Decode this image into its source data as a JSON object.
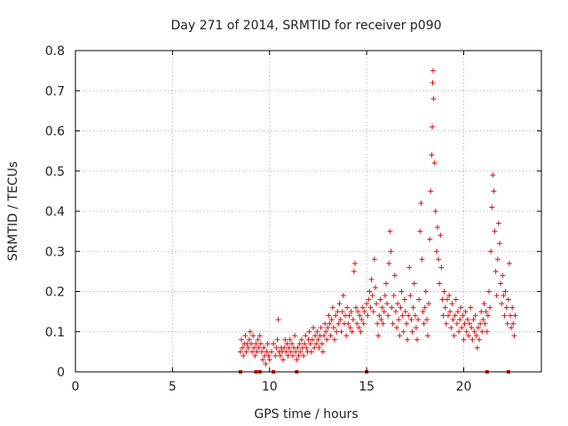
{
  "chart_data": {
    "type": "scatter",
    "title": "Day 271 of 2014, SRMTID for receiver p090",
    "xlabel": "GPS time / hours",
    "ylabel": "SRMTID / TECUs",
    "xlim": [
      0,
      24
    ],
    "ylim": [
      0,
      0.8
    ],
    "xticks": [
      0,
      5,
      10,
      15,
      20
    ],
    "xtick_labels": [
      "0",
      "5",
      "10",
      "15",
      "20"
    ],
    "yticks": [
      0,
      0.1,
      0.2,
      0.3,
      0.4,
      0.5,
      0.6,
      0.7,
      0.8
    ],
    "ytick_labels": [
      "0",
      "0.1",
      "0.2",
      "0.3",
      "0.4",
      "0.5",
      "0.6",
      "0.7",
      "0.8"
    ],
    "grid": true,
    "marker": "+",
    "series_color": "#e01010",
    "baseline_markers_x": [
      8.5,
      9.3,
      9.5,
      10.2,
      11.4,
      15.0,
      21.2,
      22.3
    ],
    "series": [
      {
        "name": "SRMTID",
        "points": [
          [
            8.5,
            0.05
          ],
          [
            8.55,
            0.08
          ],
          [
            8.6,
            0.06
          ],
          [
            8.65,
            0.04
          ],
          [
            8.7,
            0.07
          ],
          [
            8.75,
            0.09
          ],
          [
            8.8,
            0.05
          ],
          [
            8.85,
            0.07
          ],
          [
            8.9,
            0.06
          ],
          [
            8.95,
            0.08
          ],
          [
            9.0,
            0.1
          ],
          [
            9.05,
            0.07
          ],
          [
            9.1,
            0.05
          ],
          [
            9.15,
            0.09
          ],
          [
            9.2,
            0.06
          ],
          [
            9.25,
            0.04
          ],
          [
            9.3,
            0.07
          ],
          [
            9.35,
            0.05
          ],
          [
            9.4,
            0.08
          ],
          [
            9.45,
            0.06
          ],
          [
            9.5,
            0.09
          ],
          [
            9.55,
            0.07
          ],
          [
            9.6,
            0.05
          ],
          [
            9.65,
            0.03
          ],
          [
            9.7,
            0.06
          ],
          [
            9.75,
            0.04
          ],
          [
            9.8,
            0.02
          ],
          [
            9.85,
            0.05
          ],
          [
            9.9,
            0.07
          ],
          [
            9.95,
            0.04
          ],
          [
            10.0,
            0.03
          ],
          [
            10.1,
            0.05
          ],
          [
            10.2,
            0.07
          ],
          [
            10.3,
            0.04
          ],
          [
            10.35,
            0.06
          ],
          [
            10.4,
            0.08
          ],
          [
            10.45,
            0.13
          ],
          [
            10.5,
            0.05
          ],
          [
            10.55,
            0.04
          ],
          [
            10.6,
            0.06
          ],
          [
            10.65,
            0.05
          ],
          [
            10.7,
            0.03
          ],
          [
            10.75,
            0.06
          ],
          [
            10.8,
            0.08
          ],
          [
            10.85,
            0.05
          ],
          [
            10.9,
            0.07
          ],
          [
            10.95,
            0.04
          ],
          [
            11.0,
            0.06
          ],
          [
            11.05,
            0.08
          ],
          [
            11.1,
            0.05
          ],
          [
            11.15,
            0.07
          ],
          [
            11.2,
            0.04
          ],
          [
            11.25,
            0.06
          ],
          [
            11.3,
            0.09
          ],
          [
            11.35,
            0.05
          ],
          [
            11.4,
            0.03
          ],
          [
            11.45,
            0.06
          ],
          [
            11.5,
            0.04
          ],
          [
            11.55,
            0.07
          ],
          [
            11.6,
            0.05
          ],
          [
            11.65,
            0.08
          ],
          [
            11.7,
            0.06
          ],
          [
            11.75,
            0.04
          ],
          [
            11.8,
            0.07
          ],
          [
            11.85,
            0.09
          ],
          [
            11.9,
            0.06
          ],
          [
            11.95,
            0.05
          ],
          [
            12.0,
            0.08
          ],
          [
            12.05,
            0.1
          ],
          [
            12.1,
            0.07
          ],
          [
            12.15,
            0.05
          ],
          [
            12.2,
            0.08
          ],
          [
            12.25,
            0.11
          ],
          [
            12.3,
            0.06
          ],
          [
            12.35,
            0.09
          ],
          [
            12.4,
            0.07
          ],
          [
            12.45,
            0.1
          ],
          [
            12.5,
            0.08
          ],
          [
            12.55,
            0.06
          ],
          [
            12.6,
            0.09
          ],
          [
            12.65,
            0.11
          ],
          [
            12.7,
            0.07
          ],
          [
            12.75,
            0.05
          ],
          [
            12.8,
            0.09
          ],
          [
            12.85,
            0.12
          ],
          [
            12.9,
            0.1
          ],
          [
            12.95,
            0.08
          ],
          [
            13.0,
            0.11
          ],
          [
            13.05,
            0.14
          ],
          [
            13.1,
            0.12
          ],
          [
            13.15,
            0.09
          ],
          [
            13.2,
            0.13
          ],
          [
            13.25,
            0.16
          ],
          [
            13.3,
            0.11
          ],
          [
            13.35,
            0.08
          ],
          [
            13.4,
            0.14
          ],
          [
            13.45,
            0.1
          ],
          [
            13.5,
            0.15
          ],
          [
            13.55,
            0.12
          ],
          [
            13.6,
            0.17
          ],
          [
            13.65,
            0.13
          ],
          [
            13.7,
            0.1
          ],
          [
            13.75,
            0.15
          ],
          [
            13.8,
            0.19
          ],
          [
            13.85,
            0.12
          ],
          [
            13.9,
            0.14
          ],
          [
            13.95,
            0.09
          ],
          [
            14.0,
            0.16
          ],
          [
            14.05,
            0.12
          ],
          [
            14.1,
            0.14
          ],
          [
            14.15,
            0.11
          ],
          [
            14.2,
            0.15
          ],
          [
            14.25,
            0.1
          ],
          [
            14.3,
            0.13
          ],
          [
            14.35,
            0.25
          ],
          [
            14.4,
            0.27
          ],
          [
            14.45,
            0.16
          ],
          [
            14.5,
            0.12
          ],
          [
            14.55,
            0.15
          ],
          [
            14.6,
            0.11
          ],
          [
            14.65,
            0.14
          ],
          [
            14.7,
            0.1
          ],
          [
            14.75,
            0.13
          ],
          [
            14.8,
            0.16
          ],
          [
            14.85,
            0.12
          ],
          [
            14.9,
            0.15
          ],
          [
            15.0,
            0.17
          ],
          [
            15.05,
            0.14
          ],
          [
            15.1,
            0.18
          ],
          [
            15.15,
            0.2
          ],
          [
            15.2,
            0.16
          ],
          [
            15.25,
            0.23
          ],
          [
            15.3,
            0.19
          ],
          [
            15.35,
            0.15
          ],
          [
            15.4,
            0.28
          ],
          [
            15.45,
            0.21
          ],
          [
            15.5,
            0.17
          ],
          [
            15.55,
            0.12
          ],
          [
            15.6,
            0.09
          ],
          [
            15.65,
            0.14
          ],
          [
            15.7,
            0.18
          ],
          [
            15.75,
            0.13
          ],
          [
            15.8,
            0.16
          ],
          [
            15.85,
            0.12
          ],
          [
            15.9,
            0.15
          ],
          [
            15.95,
            0.19
          ],
          [
            16.0,
            0.22
          ],
          [
            16.05,
            0.17
          ],
          [
            16.1,
            0.14
          ],
          [
            16.15,
            0.27
          ],
          [
            16.2,
            0.35
          ],
          [
            16.25,
            0.3
          ],
          [
            16.3,
            0.16
          ],
          [
            16.35,
            0.12
          ],
          [
            16.4,
            0.19
          ],
          [
            16.45,
            0.24
          ],
          [
            16.5,
            0.15
          ],
          [
            16.55,
            0.11
          ],
          [
            16.6,
            0.17
          ],
          [
            16.65,
            0.13
          ],
          [
            16.7,
            0.09
          ],
          [
            16.75,
            0.16
          ],
          [
            16.8,
            0.2
          ],
          [
            16.85,
            0.14
          ],
          [
            16.9,
            0.1
          ],
          [
            16.95,
            0.18
          ],
          [
            17.0,
            0.15
          ],
          [
            17.05,
            0.12
          ],
          [
            17.1,
            0.08
          ],
          [
            17.15,
            0.14
          ],
          [
            17.2,
            0.26
          ],
          [
            17.25,
            0.19
          ],
          [
            17.3,
            0.13
          ],
          [
            17.35,
            0.1
          ],
          [
            17.4,
            0.16
          ],
          [
            17.45,
            0.22
          ],
          [
            17.5,
            0.14
          ],
          [
            17.55,
            0.11
          ],
          [
            17.6,
            0.08
          ],
          [
            17.65,
            0.13
          ],
          [
            17.7,
            0.18
          ],
          [
            17.75,
            0.35
          ],
          [
            17.8,
            0.42
          ],
          [
            17.85,
            0.28
          ],
          [
            17.9,
            0.15
          ],
          [
            17.95,
            0.12
          ],
          [
            18.0,
            0.16
          ],
          [
            18.05,
            0.2
          ],
          [
            18.1,
            0.13
          ],
          [
            18.15,
            0.09
          ],
          [
            18.2,
            0.17
          ],
          [
            18.25,
            0.33
          ],
          [
            18.3,
            0.45
          ],
          [
            18.35,
            0.54
          ],
          [
            18.38,
            0.61
          ],
          [
            18.4,
            0.72
          ],
          [
            18.42,
            0.75
          ],
          [
            18.45,
            0.68
          ],
          [
            18.5,
            0.52
          ],
          [
            18.55,
            0.4
          ],
          [
            18.6,
            0.3
          ],
          [
            18.65,
            0.36
          ],
          [
            18.7,
            0.28
          ],
          [
            18.75,
            0.22
          ],
          [
            18.8,
            0.34
          ],
          [
            18.85,
            0.26
          ],
          [
            18.9,
            0.18
          ],
          [
            18.95,
            0.14
          ],
          [
            19.0,
            0.2
          ],
          [
            19.05,
            0.16
          ],
          [
            19.1,
            0.12
          ],
          [
            19.15,
            0.18
          ],
          [
            19.2,
            0.14
          ],
          [
            19.25,
            0.19
          ],
          [
            19.3,
            0.15
          ],
          [
            19.35,
            0.11
          ],
          [
            19.4,
            0.17
          ],
          [
            19.45,
            0.13
          ],
          [
            19.5,
            0.09
          ],
          [
            19.55,
            0.14
          ],
          [
            19.6,
            0.18
          ],
          [
            19.65,
            0.12
          ],
          [
            19.7,
            0.15
          ],
          [
            19.75,
            0.1
          ],
          [
            19.8,
            0.13
          ],
          [
            19.85,
            0.16
          ],
          [
            19.9,
            0.11
          ],
          [
            19.95,
            0.14
          ],
          [
            20.0,
            0.08
          ],
          [
            20.05,
            0.12
          ],
          [
            20.1,
            0.15
          ],
          [
            20.15,
            0.1
          ],
          [
            20.2,
            0.13
          ],
          [
            20.25,
            0.09
          ],
          [
            20.3,
            0.12
          ],
          [
            20.35,
            0.16
          ],
          [
            20.4,
            0.11
          ],
          [
            20.45,
            0.08
          ],
          [
            20.5,
            0.13
          ],
          [
            20.55,
            0.1
          ],
          [
            20.6,
            0.14
          ],
          [
            20.65,
            0.09
          ],
          [
            20.7,
            0.06
          ],
          [
            20.75,
            0.11
          ],
          [
            20.8,
            0.08
          ],
          [
            20.85,
            0.12
          ],
          [
            20.9,
            0.15
          ],
          [
            20.95,
            0.1
          ],
          [
            21.0,
            0.13
          ],
          [
            21.05,
            0.17
          ],
          [
            21.1,
            0.12
          ],
          [
            21.15,
            0.15
          ],
          [
            21.2,
            0.1
          ],
          [
            21.25,
            0.14
          ],
          [
            21.3,
            0.2
          ],
          [
            21.35,
            0.16
          ],
          [
            21.4,
            0.3
          ],
          [
            21.45,
            0.41
          ],
          [
            21.5,
            0.49
          ],
          [
            21.55,
            0.45
          ],
          [
            21.6,
            0.35
          ],
          [
            21.65,
            0.25
          ],
          [
            21.7,
            0.19
          ],
          [
            21.75,
            0.28
          ],
          [
            21.8,
            0.37
          ],
          [
            21.85,
            0.32
          ],
          [
            21.9,
            0.22
          ],
          [
            21.95,
            0.17
          ],
          [
            22.0,
            0.24
          ],
          [
            22.05,
            0.19
          ],
          [
            22.1,
            0.14
          ],
          [
            22.15,
            0.2
          ],
          [
            22.2,
            0.16
          ],
          [
            22.25,
            0.12
          ],
          [
            22.3,
            0.18
          ],
          [
            22.35,
            0.27
          ],
          [
            22.4,
            0.14
          ],
          [
            22.45,
            0.11
          ],
          [
            22.5,
            0.16
          ],
          [
            22.55,
            0.12
          ],
          [
            22.6,
            0.09
          ],
          [
            22.65,
            0.14
          ]
        ]
      }
    ]
  }
}
